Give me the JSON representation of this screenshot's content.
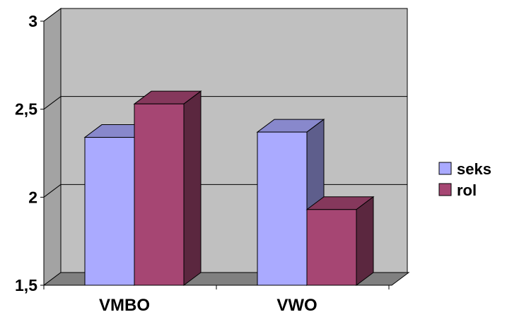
{
  "chart_data": {
    "type": "bar",
    "style": "3d-clustered-column",
    "title": "",
    "xlabel": "",
    "ylabel": "",
    "categories": [
      "VMBO",
      "VWO"
    ],
    "series": [
      {
        "name": "seks",
        "values": [
          2.34,
          2.37
        ],
        "color": "#aaaaff"
      },
      {
        "name": "rol",
        "values": [
          2.53,
          1.93
        ],
        "color": "#a64673"
      }
    ],
    "ylim": [
      1.5,
      3
    ],
    "yticks": [
      1.5,
      2,
      2.5,
      3
    ],
    "ytick_labels": [
      "1,5",
      "2",
      "2,5",
      "3"
    ],
    "grid": true,
    "legend_position": "right",
    "wall_color": "#c0c0c0",
    "floor_color": "#808080"
  }
}
